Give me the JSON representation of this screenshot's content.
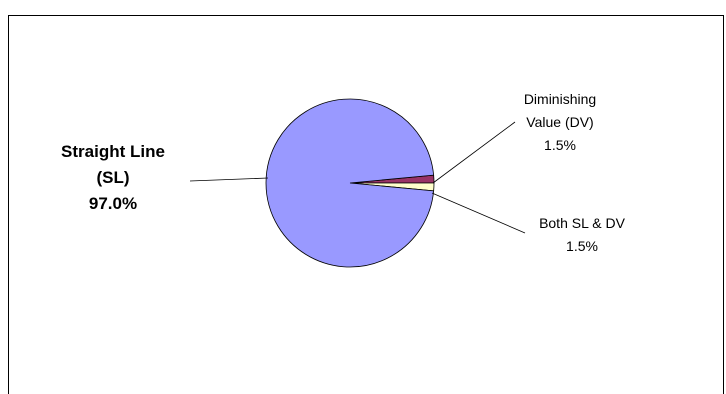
{
  "chart_data": {
    "type": "pie",
    "title": "",
    "slices": [
      {
        "label_lines": [
          "Straight Line",
          "(SL)"
        ],
        "value": 97.0,
        "value_label": "97.0%",
        "color": "#9999ff",
        "emphasis": true
      },
      {
        "label_lines": [
          "Diminishing",
          "Value (DV)"
        ],
        "value": 1.5,
        "value_label": "1.5%",
        "color": "#993366",
        "emphasis": false
      },
      {
        "label_lines": [
          "Both SL & DV"
        ],
        "value": 1.5,
        "value_label": "1.5%",
        "color": "#ffffcc",
        "emphasis": false
      }
    ],
    "legend": "none"
  }
}
